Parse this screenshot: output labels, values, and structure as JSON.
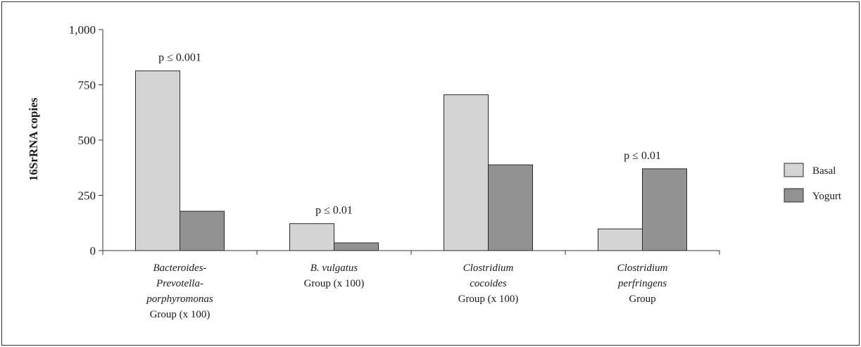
{
  "chart_data": {
    "type": "bar",
    "ylabel": "16SrRNA copies",
    "xlabel": "",
    "ylim": [
      0,
      1000
    ],
    "yticks": [
      0,
      250,
      500,
      750,
      1000
    ],
    "ytick_labels": [
      "0",
      "250",
      "500",
      "750",
      "1,000"
    ],
    "categories": [
      "Bacteroides-Prevotella-porphyromonas Group (x 100)",
      "B. vulgatus Group (x 100)",
      "Clostridium cocoides Group (x 100)",
      "Clostridium perfringens Group"
    ],
    "category_labels": [
      [
        {
          "t": "Bacteroides-",
          "i": true
        },
        {
          "t": "Prevotella-",
          "i": true
        },
        {
          "t": "porphyromonas",
          "i": true
        },
        {
          "t": "Group (x 100)",
          "i": false
        }
      ],
      [
        {
          "t": "B. vulgatus",
          "i": true
        },
        {
          "t": "Group (x 100)",
          "i": false
        }
      ],
      [
        {
          "t": "Clostridium",
          "i": true
        },
        {
          "t": "cocoides",
          "i": true
        },
        {
          "t": "Group (x 100)",
          "i": false
        }
      ],
      [
        {
          "t": "Clostridium",
          "i": true
        },
        {
          "t": "perfringens",
          "i": true
        },
        {
          "t": "Group",
          "i": false
        }
      ]
    ],
    "series": [
      {
        "name": "Basal",
        "color": "#d3d4d6",
        "values": [
          813,
          122,
          705,
          98
        ]
      },
      {
        "name": "Yogurt",
        "color": "#919294",
        "values": [
          178,
          35,
          388,
          370
        ]
      }
    ],
    "annotations": [
      "p ≤ 0.001",
      "p ≤ 0.01",
      "",
      "p ≤ 0.01"
    ],
    "grid": false,
    "legend_position": "right"
  }
}
